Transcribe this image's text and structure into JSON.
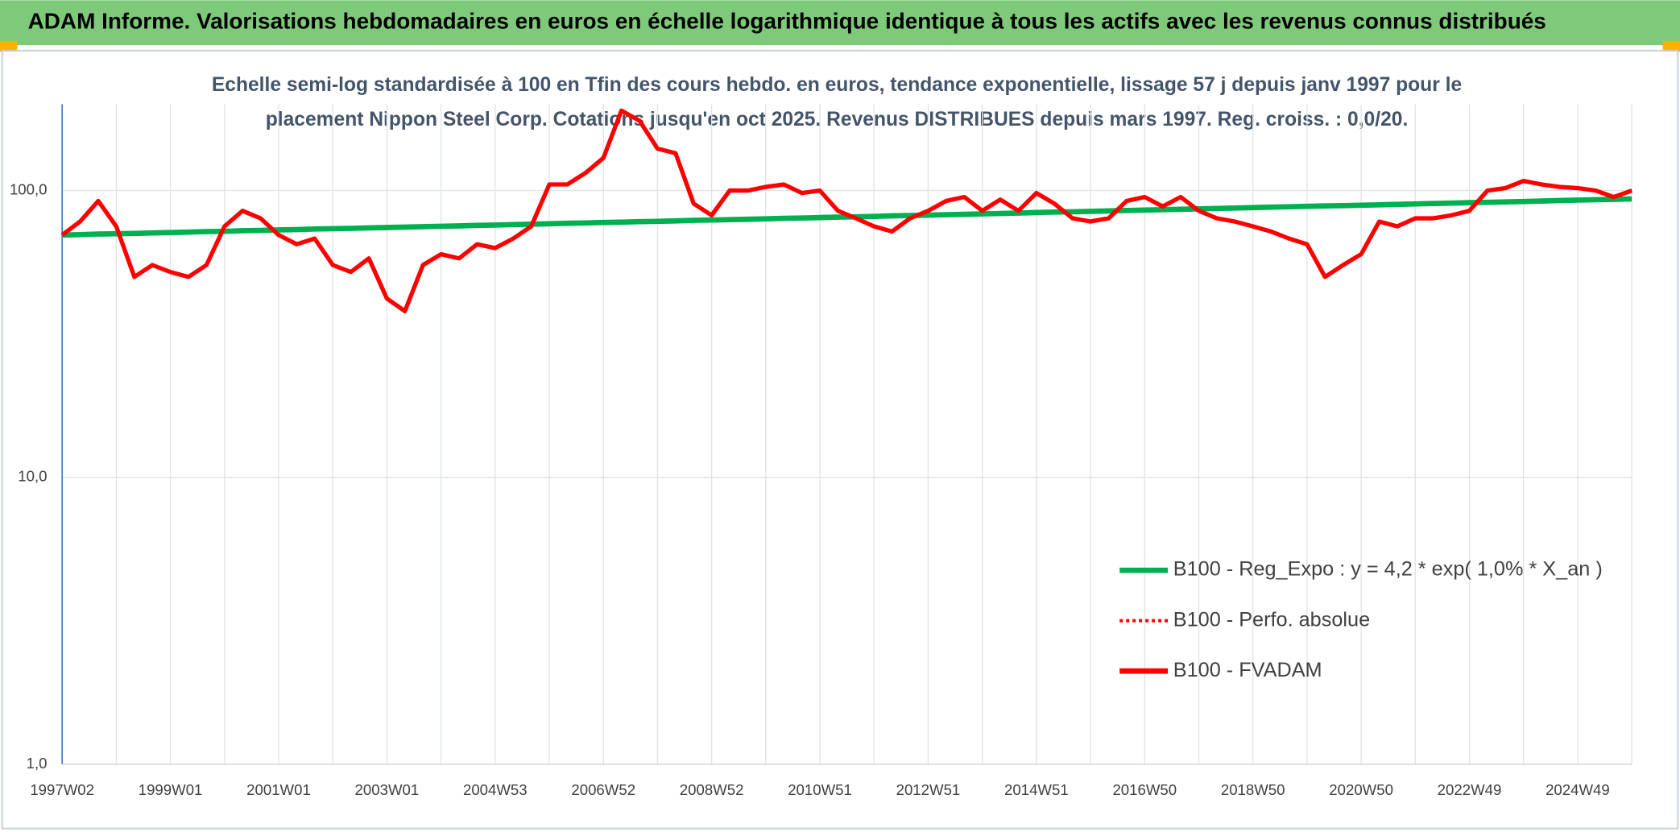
{
  "page_title": "ADAM Informe. Valorisations hebdomadaires en euros en échelle logarithmique identique à tous les actifs avec les revenus connus distribués",
  "chart_data": {
    "type": "line",
    "title": [
      "Echelle semi-log standardisée à 100 en Tfin des cours hebdo. en euros, tendance exponentielle, lissage 57 j depuis janv 1997 pour le",
      "placement Nippon Steel Corp. Cotations jusqu'en oct 2025. Revenus DISTRIBUES depuis mars 1997. Reg. croiss. : 0,0/20."
    ],
    "categories": [
      "1997W02",
      null,
      null,
      null,
      null,
      null,
      "1999W01",
      null,
      null,
      null,
      null,
      null,
      "2001W01",
      null,
      null,
      null,
      null,
      null,
      "2003W01",
      null,
      null,
      null,
      null,
      null,
      "2004W53",
      null,
      null,
      null,
      null,
      null,
      "2006W52",
      null,
      null,
      null,
      null,
      null,
      "2008W52",
      null,
      null,
      null,
      null,
      null,
      "2010W51",
      null,
      null,
      null,
      null,
      null,
      "2012W51",
      null,
      null,
      null,
      null,
      null,
      "2014W51",
      null,
      null,
      null,
      null,
      null,
      "2016W50",
      null,
      null,
      null,
      null,
      null,
      "2018W50",
      null,
      null,
      null,
      null,
      null,
      "2020W50",
      null,
      null,
      null,
      null,
      null,
      "2022W49",
      null,
      null,
      null,
      null,
      null,
      "2024W49",
      null,
      null,
      null
    ],
    "log_scale": true,
    "grid": true,
    "ylim": [
      1,
      200
    ],
    "yticks": [
      {
        "value": 1,
        "label": "1,0"
      },
      {
        "value": 10,
        "label": "10,0"
      },
      {
        "value": 100,
        "label": "100,0"
      }
    ],
    "series": [
      {
        "name": "B100 - Reg_Expo : y = 4,2 * exp( 1,0% *  X_an )",
        "color": "#00b050",
        "style": "solid",
        "values": [
          70.0,
          70.2,
          70.5,
          70.7,
          70.9,
          71.2,
          71.4,
          71.6,
          71.9,
          72.1,
          72.4,
          72.6,
          72.9,
          73.1,
          73.4,
          73.6,
          73.8,
          74.1,
          74.3,
          74.6,
          74.8,
          75.1,
          75.3,
          75.6,
          75.8,
          76.1,
          76.3,
          76.6,
          76.9,
          77.1,
          77.4,
          77.6,
          77.9,
          78.1,
          78.4,
          78.7,
          78.9,
          79.2,
          79.4,
          79.7,
          80.0,
          80.2,
          80.5,
          80.8,
          81.0,
          81.3,
          81.6,
          81.8,
          82.1,
          82.4,
          82.6,
          82.9,
          83.2,
          83.5,
          83.8,
          84.1,
          84.3,
          84.6,
          84.9,
          85.2,
          85.5,
          85.8,
          86.0,
          86.3,
          86.6,
          86.9,
          87.2,
          87.5,
          87.8,
          88.1,
          88.4,
          88.6,
          88.9,
          89.2,
          89.5,
          89.8,
          90.1,
          90.4,
          90.7,
          91.0,
          91.3,
          91.6,
          91.9,
          92.3,
          92.6,
          92.9,
          93.2,
          93.5
        ]
      },
      {
        "name": "B100 - Perfo. absolue",
        "color": "#ff0000",
        "style": "dotted",
        "values": [
          70,
          78,
          92,
          75,
          50,
          55,
          52,
          50,
          55,
          75,
          85,
          80,
          70,
          65,
          68,
          55,
          52,
          58,
          42,
          38,
          55,
          60,
          58,
          65,
          63,
          68,
          75,
          105,
          105,
          115,
          130,
          190,
          175,
          140,
          135,
          90,
          82,
          100,
          100,
          103,
          105,
          98,
          100,
          85,
          80,
          75,
          72,
          80,
          85,
          92,
          95,
          85,
          93,
          85,
          98,
          90,
          80,
          78,
          80,
          92,
          95,
          88,
          95,
          85,
          80,
          78,
          75,
          72,
          68,
          65,
          50,
          55,
          60,
          78,
          75,
          80,
          80,
          82,
          85,
          100,
          102,
          108,
          105,
          103,
          102,
          100,
          95,
          100
        ]
      },
      {
        "name": "B100 - FVADAM",
        "color": "#ff0000",
        "style": "solid",
        "values": [
          70,
          78,
          92,
          75,
          50,
          55,
          52,
          50,
          55,
          75,
          85,
          80,
          70,
          65,
          68,
          55,
          52,
          58,
          42,
          38,
          55,
          60,
          58,
          65,
          63,
          68,
          75,
          105,
          105,
          115,
          130,
          190,
          175,
          140,
          135,
          90,
          82,
          100,
          100,
          103,
          105,
          98,
          100,
          85,
          80,
          75,
          72,
          80,
          85,
          92,
          95,
          85,
          93,
          85,
          98,
          90,
          80,
          78,
          80,
          92,
          95,
          88,
          95,
          85,
          80,
          78,
          75,
          72,
          68,
          65,
          50,
          55,
          60,
          78,
          75,
          80,
          80,
          82,
          85,
          100,
          102,
          108,
          105,
          103,
          102,
          100,
          95,
          100
        ]
      }
    ]
  }
}
